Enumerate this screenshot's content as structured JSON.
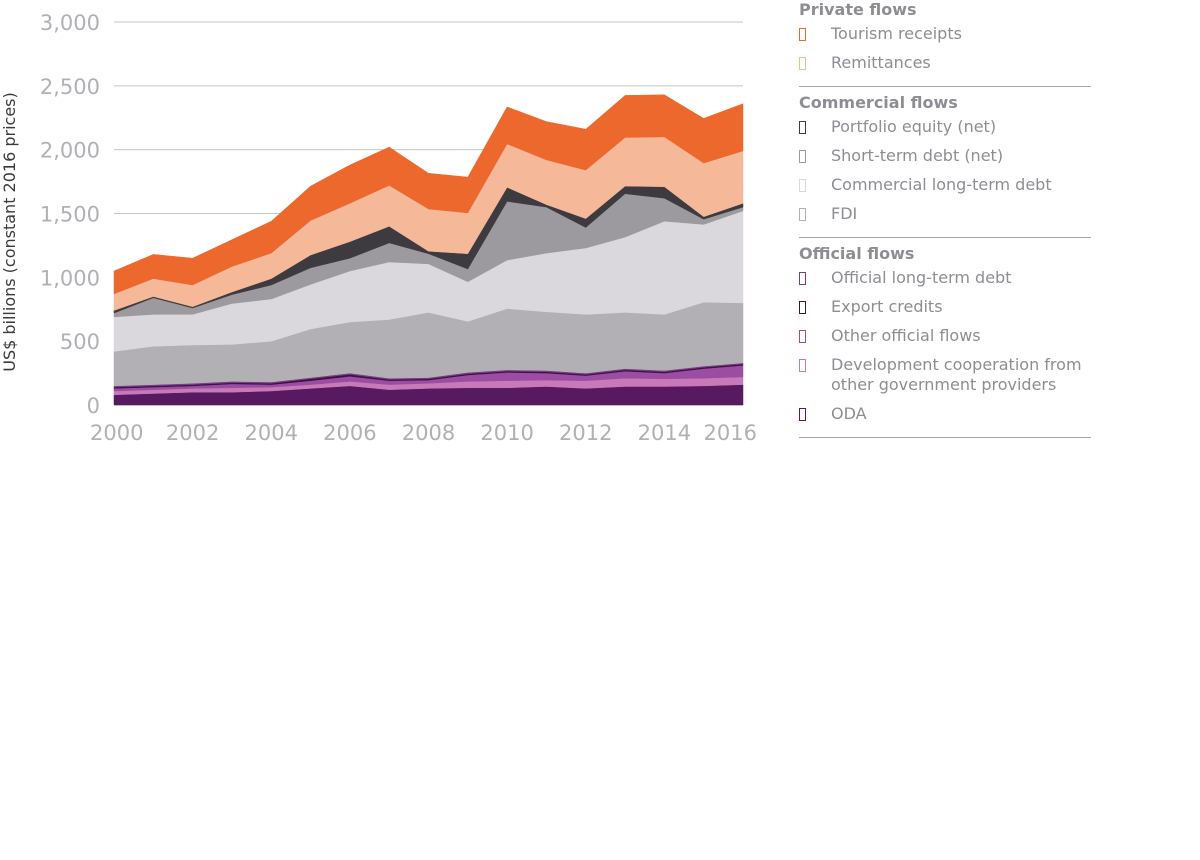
{
  "chart_data": {
    "type": "area",
    "stacked": true,
    "title": "",
    "xlabel": "",
    "ylabel": "US$ billions (constant 2016 prices)",
    "ylim": [
      0,
      3000
    ],
    "yticks": [
      0,
      500,
      1000,
      1500,
      2000,
      2500,
      3000
    ],
    "ytick_labels": [
      "0",
      "500",
      "1,000",
      "1,500",
      "2,000",
      "2,500",
      "3,000"
    ],
    "xlim": [
      2000,
      2016
    ],
    "xticks": [
      2000,
      2002,
      2004,
      2006,
      2008,
      2010,
      2012,
      2014,
      2016
    ],
    "grid": "horizontal",
    "legend_position": "right",
    "x": [
      2000,
      2001,
      2002,
      2003,
      2004,
      2005,
      2006,
      2007,
      2008,
      2009,
      2010,
      2011,
      2012,
      2013,
      2014,
      2015,
      2016
    ],
    "series": [
      {
        "name": "ODA",
        "group": "Official flows",
        "color": "#57195f",
        "values": [
          80,
          90,
          100,
          100,
          110,
          130,
          150,
          120,
          130,
          135,
          135,
          145,
          130,
          145,
          145,
          150,
          160
        ]
      },
      {
        "name": "Development cooperation from other government providers",
        "group": "Official flows",
        "color": "#c879b8",
        "values": [
          30,
          30,
          30,
          35,
          30,
          30,
          35,
          40,
          40,
          50,
          55,
          50,
          60,
          65,
          60,
          60,
          60
        ]
      },
      {
        "name": "Other official flows",
        "group": "Official flows",
        "color": "#9b4da3",
        "values": [
          20,
          20,
          20,
          30,
          20,
          30,
          40,
          30,
          25,
          50,
          65,
          55,
          40,
          55,
          45,
          75,
          90
        ]
      },
      {
        "name": "Export credits",
        "group": "Official flows",
        "color": "#3d1240",
        "values": [
          10,
          10,
          10,
          10,
          10,
          15,
          15,
          10,
          10,
          10,
          10,
          10,
          10,
          10,
          10,
          10,
          10
        ]
      },
      {
        "name": "Official long-term debt",
        "group": "Official flows",
        "color": "#7a3a87",
        "values": [
          10,
          10,
          10,
          10,
          10,
          10,
          10,
          10,
          10,
          10,
          10,
          10,
          10,
          10,
          10,
          10,
          10
        ]
      },
      {
        "name": "FDI",
        "group": "Commercial flows",
        "color": "#b2b0b5",
        "values": [
          270,
          300,
          300,
          290,
          320,
          380,
          400,
          460,
          510,
          400,
          480,
          460,
          460,
          440,
          440,
          500,
          470
        ]
      },
      {
        "name": "Commercial long-term debt",
        "group": "Commercial flows",
        "color": "#dad8dc",
        "values": [
          270,
          250,
          240,
          320,
          330,
          350,
          400,
          450,
          380,
          310,
          380,
          460,
          520,
          590,
          730,
          610,
          720
        ]
      },
      {
        "name": "Short-term debt (net)",
        "group": "Commercial flows",
        "color": "#9c999f",
        "values": [
          30,
          130,
          50,
          70,
          110,
          130,
          100,
          150,
          80,
          100,
          460,
          360,
          160,
          340,
          180,
          40,
          30
        ]
      },
      {
        "name": "Portfolio equity (net)",
        "group": "Commercial flows",
        "color": "#3d3b40",
        "values": [
          20,
          10,
          10,
          20,
          50,
          100,
          130,
          130,
          20,
          120,
          110,
          20,
          70,
          60,
          90,
          20,
          30
        ]
      },
      {
        "name": "Remittances",
        "group": "Private flows",
        "color": "#f5b898",
        "values": [
          130,
          140,
          170,
          200,
          200,
          270,
          300,
          320,
          330,
          320,
          340,
          350,
          380,
          380,
          390,
          420,
          410
        ]
      },
      {
        "name": "Tourism receipts",
        "group": "Private flows",
        "color": "#ec682c",
        "values": [
          180,
          190,
          210,
          210,
          250,
          270,
          300,
          300,
          280,
          280,
          290,
          300,
          320,
          330,
          330,
          350,
          370
        ]
      }
    ]
  },
  "legend": {
    "groups": [
      {
        "heading": "Private flows",
        "items": [
          {
            "label": "Tourism receipts",
            "color": "#ec682c"
          },
          {
            "label": "Remittances",
            "color": "#f5b898"
          }
        ]
      },
      {
        "heading": "Commercial flows",
        "items": [
          {
            "label": "Portfolio equity (net)",
            "color": "#3d3b40"
          },
          {
            "label": "Short-term debt (net)",
            "color": "#9c999f"
          },
          {
            "label": "Commercial long-term debt",
            "color": "#dad8dc"
          },
          {
            "label": "FDI",
            "color": "#b2b0b5"
          }
        ]
      },
      {
        "heading": "Official flows",
        "items": [
          {
            "label": "Official long-term debt",
            "color": "#7a3a87"
          },
          {
            "label": "Export credits",
            "color": "#3d1240"
          },
          {
            "label": "Other official flows",
            "color": "#9b4da3"
          },
          {
            "label": "Development cooperation from other government providers",
            "color": "#c879b8"
          },
          {
            "label": "ODA",
            "color": "#57195f"
          }
        ]
      }
    ]
  }
}
